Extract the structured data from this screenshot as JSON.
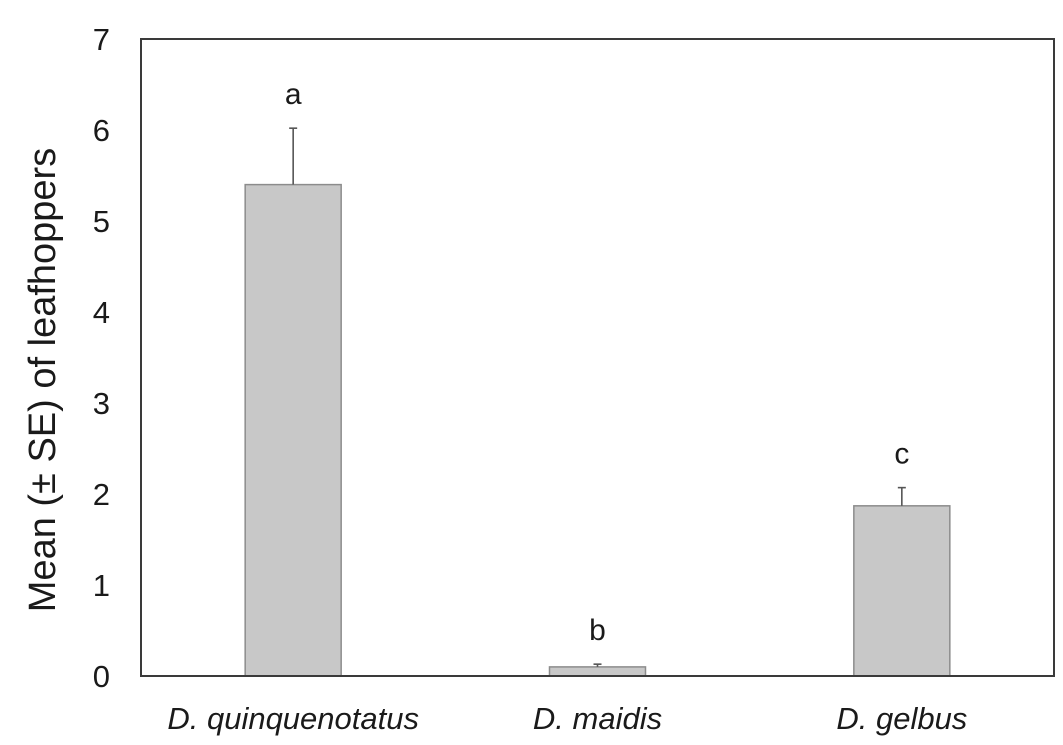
{
  "chart_data": {
    "type": "bar",
    "categories": [
      "D. quinquenotatus",
      "D. maidis",
      "D. gelbus"
    ],
    "values": [
      5.4,
      0.1,
      1.87
    ],
    "errors": [
      0.62,
      0.03,
      0.2
    ],
    "significance_labels": [
      "a",
      "b",
      "c"
    ],
    "title": "",
    "xlabel": "",
    "ylabel": "Mean (± SE) of leafhoppers",
    "ylim": [
      0,
      7
    ],
    "yticks": [
      "0",
      "1",
      "2",
      "3",
      "4",
      "5",
      "6",
      "7"
    ],
    "grid": false,
    "colors": {
      "bar_fill": "#c8c8c8",
      "bar_stroke": "#8c8c8c",
      "frame": "#3a3a3a",
      "error_bar": "#555555"
    }
  }
}
